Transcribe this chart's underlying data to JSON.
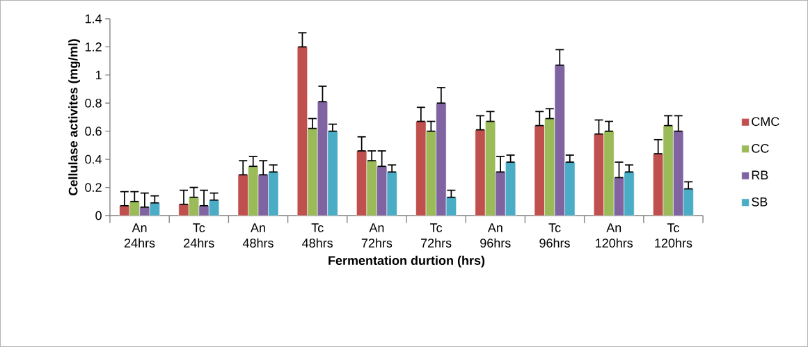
{
  "chart_data": {
    "type": "bar",
    "xlabel": "Fermentation durtion (hrs)",
    "ylabel": "Cellulase activites (mg/ml)",
    "categories": [
      "An 24hrs",
      "Tc 24hrs",
      "An 48hrs",
      "Tc 48hrs",
      "An 72hrs",
      "Tc 72hrs",
      "An 96hrs",
      "Tc 96hrs",
      "An 120hrs",
      "Tc 120hrs"
    ],
    "series": [
      {
        "name": "CMC",
        "color": "#c0504d",
        "values": [
          0.07,
          0.08,
          0.29,
          1.2,
          0.46,
          0.67,
          0.61,
          0.64,
          0.58,
          0.44
        ],
        "errors": [
          [
            0.07,
            0.17
          ],
          [
            0.08,
            0.18
          ],
          [
            0.29,
            0.39
          ],
          [
            1.2,
            1.3
          ],
          [
            0.46,
            0.56
          ],
          [
            0.67,
            0.77
          ],
          [
            0.61,
            0.71
          ],
          [
            0.64,
            0.74
          ],
          [
            0.58,
            0.68
          ],
          [
            0.44,
            0.54
          ]
        ]
      },
      {
        "name": "CC",
        "color": "#9bbb59",
        "values": [
          0.1,
          0.13,
          0.35,
          0.62,
          0.39,
          0.6,
          0.67,
          0.69,
          0.6,
          0.64
        ],
        "errors": [
          [
            0.1,
            0.17
          ],
          [
            0.13,
            0.2
          ],
          [
            0.35,
            0.42
          ],
          [
            0.62,
            0.69
          ],
          [
            0.39,
            0.46
          ],
          [
            0.6,
            0.67
          ],
          [
            0.67,
            0.74
          ],
          [
            0.69,
            0.76
          ],
          [
            0.6,
            0.67
          ],
          [
            0.64,
            0.71
          ]
        ]
      },
      {
        "name": "RB",
        "color": "#8064a2",
        "values": [
          0.06,
          0.07,
          0.29,
          0.81,
          0.35,
          0.8,
          0.31,
          1.07,
          0.27,
          0.6
        ],
        "errors": [
          [
            0.06,
            0.16
          ],
          [
            0.07,
            0.18
          ],
          [
            0.29,
            0.39
          ],
          [
            0.81,
            0.92
          ],
          [
            0.35,
            0.46
          ],
          [
            0.8,
            0.91
          ],
          [
            0.31,
            0.42
          ],
          [
            1.07,
            1.18
          ],
          [
            0.27,
            0.38
          ],
          [
            0.6,
            0.71
          ]
        ]
      },
      {
        "name": "SB",
        "color": "#4bacc6",
        "values": [
          0.09,
          0.11,
          0.31,
          0.6,
          0.31,
          0.13,
          0.38,
          0.38,
          0.31,
          0.19
        ],
        "errors": [
          [
            0.09,
            0.14
          ],
          [
            0.11,
            0.16
          ],
          [
            0.31,
            0.36
          ],
          [
            0.6,
            0.65
          ],
          [
            0.31,
            0.36
          ],
          [
            0.13,
            0.18
          ],
          [
            0.38,
            0.43
          ],
          [
            0.38,
            0.43
          ],
          [
            0.31,
            0.36
          ],
          [
            0.19,
            0.24
          ]
        ]
      }
    ],
    "ylim": [
      0,
      1.4
    ],
    "yticks": [
      0,
      0.2,
      0.4,
      0.6,
      0.8,
      1,
      1.2,
      1.4
    ],
    "grid": false,
    "legend": "right"
  }
}
